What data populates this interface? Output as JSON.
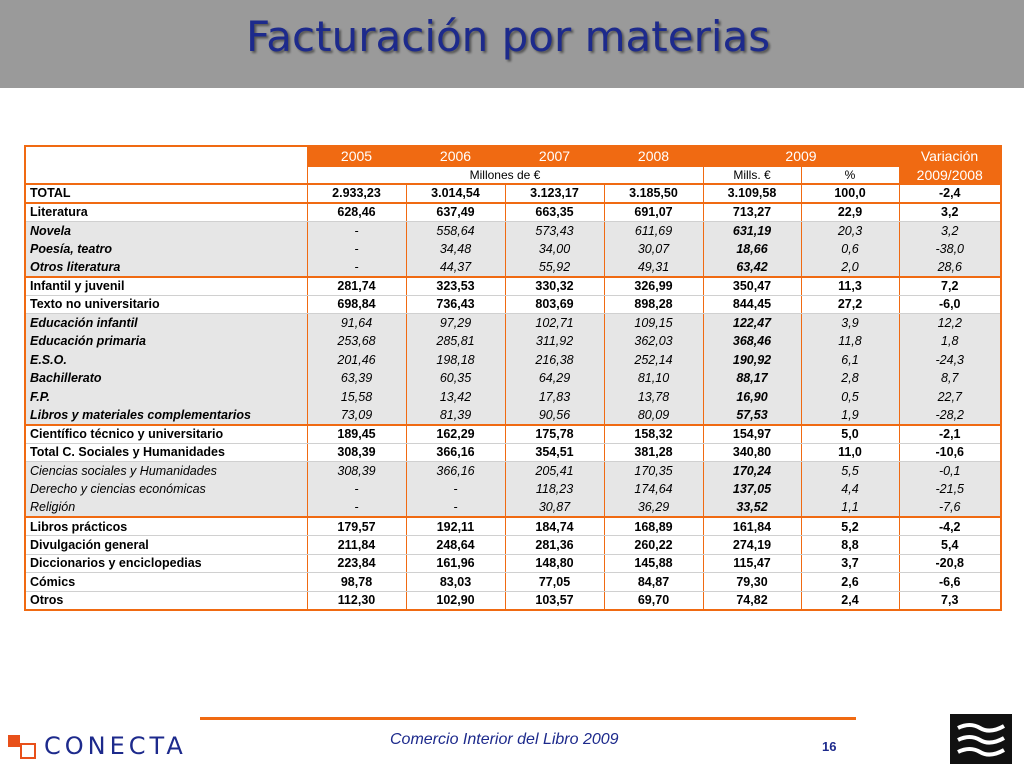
{
  "slide": {
    "title": "Facturación por materias",
    "footer_text": "Comercio Interior del Libro 2009",
    "page_number": "16",
    "logo_text": "CONECTA",
    "colors": {
      "accent": "#f06a12",
      "title": "#1d2a8c",
      "header_band": "#9a9a9a",
      "sub_row_bg": "#e6e6e6"
    }
  },
  "table": {
    "header": {
      "years": [
        "2005",
        "2006",
        "2007",
        "2008"
      ],
      "year_2009": "2009",
      "variation": "Variación",
      "variation_period": "2009/2008",
      "millions_label": "Millones de €",
      "mills_label": "Mills. €",
      "percent_label": "%"
    },
    "rows": [
      {
        "label": "TOTAL",
        "v2005": "2.933,23",
        "v2006": "3.014,54",
        "v2007": "3.123,17",
        "v2008": "3.185,50",
        "v2009": "3.109,58",
        "pct": "100,0",
        "var": "-2,4"
      },
      {
        "label": "Literatura",
        "v2005": "628,46",
        "v2006": "637,49",
        "v2007": "663,35",
        "v2008": "691,07",
        "v2009": "713,27",
        "pct": "22,9",
        "var": "3,2"
      },
      {
        "label": "Novela",
        "v2005": "-",
        "v2006": "558,64",
        "v2007": "573,43",
        "v2008": "611,69",
        "v2009": "631,19",
        "pct": "20,3",
        "var": "3,2"
      },
      {
        "label": "Poesía, teatro",
        "v2005": "-",
        "v2006": "34,48",
        "v2007": "34,00",
        "v2008": "30,07",
        "v2009": "18,66",
        "pct": "0,6",
        "var": "-38,0"
      },
      {
        "label": "Otros literatura",
        "v2005": "-",
        "v2006": "44,37",
        "v2007": "55,92",
        "v2008": "49,31",
        "v2009": "63,42",
        "pct": "2,0",
        "var": "28,6"
      },
      {
        "label": "Infantil y juvenil",
        "v2005": "281,74",
        "v2006": "323,53",
        "v2007": "330,32",
        "v2008": "326,99",
        "v2009": "350,47",
        "pct": "11,3",
        "var": "7,2"
      },
      {
        "label": "Texto no universitario",
        "v2005": "698,84",
        "v2006": "736,43",
        "v2007": "803,69",
        "v2008": "898,28",
        "v2009": "844,45",
        "pct": "27,2",
        "var": "-6,0"
      },
      {
        "label": "Educación infantil",
        "v2005": "91,64",
        "v2006": "97,29",
        "v2007": "102,71",
        "v2008": "109,15",
        "v2009": "122,47",
        "pct": "3,9",
        "var": "12,2"
      },
      {
        "label": "Educación primaria",
        "v2005": "253,68",
        "v2006": "285,81",
        "v2007": "311,92",
        "v2008": "362,03",
        "v2009": "368,46",
        "pct": "11,8",
        "var": "1,8"
      },
      {
        "label": "E.S.O.",
        "v2005": "201,46",
        "v2006": "198,18",
        "v2007": "216,38",
        "v2008": "252,14",
        "v2009": "190,92",
        "pct": "6,1",
        "var": "-24,3"
      },
      {
        "label": "Bachillerato",
        "v2005": "63,39",
        "v2006": "60,35",
        "v2007": "64,29",
        "v2008": "81,10",
        "v2009": "88,17",
        "pct": "2,8",
        "var": "8,7"
      },
      {
        "label": "F.P.",
        "v2005": "15,58",
        "v2006": "13,42",
        "v2007": "17,83",
        "v2008": "13,78",
        "v2009": "16,90",
        "pct": "0,5",
        "var": "22,7"
      },
      {
        "label": "Libros y materiales complementarios",
        "v2005": "73,09",
        "v2006": "81,39",
        "v2007": "90,56",
        "v2008": "80,09",
        "v2009": "57,53",
        "pct": "1,9",
        "var": "-28,2"
      },
      {
        "label": "Científico  técnico y universitario",
        "v2005": "189,45",
        "v2006": "162,29",
        "v2007": "175,78",
        "v2008": "158,32",
        "v2009": "154,97",
        "pct": "5,0",
        "var": "-2,1"
      },
      {
        "label": "Total C. Sociales y Humanidades",
        "v2005": "308,39",
        "v2006": "366,16",
        "v2007": "354,51",
        "v2008": "381,28",
        "v2009": "340,80",
        "pct": "11,0",
        "var": "-10,6"
      },
      {
        "label": "Ciencias sociales y Humanidades",
        "v2005": "308,39",
        "v2006": "366,16",
        "v2007": "205,41",
        "v2008": "170,35",
        "v2009": "170,24",
        "pct": "5,5",
        "var": "-0,1"
      },
      {
        "label": "Derecho y ciencias económicas",
        "v2005": "-",
        "v2006": "-",
        "v2007": "118,23",
        "v2008": "174,64",
        "v2009": "137,05",
        "pct": "4,4",
        "var": "-21,5"
      },
      {
        "label": "Religión",
        "v2005": "-",
        "v2006": "-",
        "v2007": "30,87",
        "v2008": "36,29",
        "v2009": "33,52",
        "pct": "1,1",
        "var": "-7,6"
      },
      {
        "label": "Libros prácticos",
        "v2005": "179,57",
        "v2006": "192,11",
        "v2007": "184,74",
        "v2008": "168,89",
        "v2009": "161,84",
        "pct": "5,2",
        "var": "-4,2"
      },
      {
        "label": "Divulgación general",
        "v2005": "211,84",
        "v2006": "248,64",
        "v2007": "281,36",
        "v2008": "260,22",
        "v2009": "274,19",
        "pct": "8,8",
        "var": "5,4"
      },
      {
        "label": "Diccionarios y enciclopedias",
        "v2005": "223,84",
        "v2006": "161,96",
        "v2007": "148,80",
        "v2008": "145,88",
        "v2009": "115,47",
        "pct": "3,7",
        "var": "-20,8"
      },
      {
        "label": "Cómics",
        "v2005": "98,78",
        "v2006": "83,03",
        "v2007": "77,05",
        "v2008": "84,87",
        "v2009": "79,30",
        "pct": "2,6",
        "var": "-6,6"
      },
      {
        "label": "Otros",
        "v2005": "112,30",
        "v2006": "102,90",
        "v2007": "103,57",
        "v2008": "69,70",
        "v2009": "74,82",
        "pct": "2,4",
        "var": "7,3"
      }
    ]
  }
}
